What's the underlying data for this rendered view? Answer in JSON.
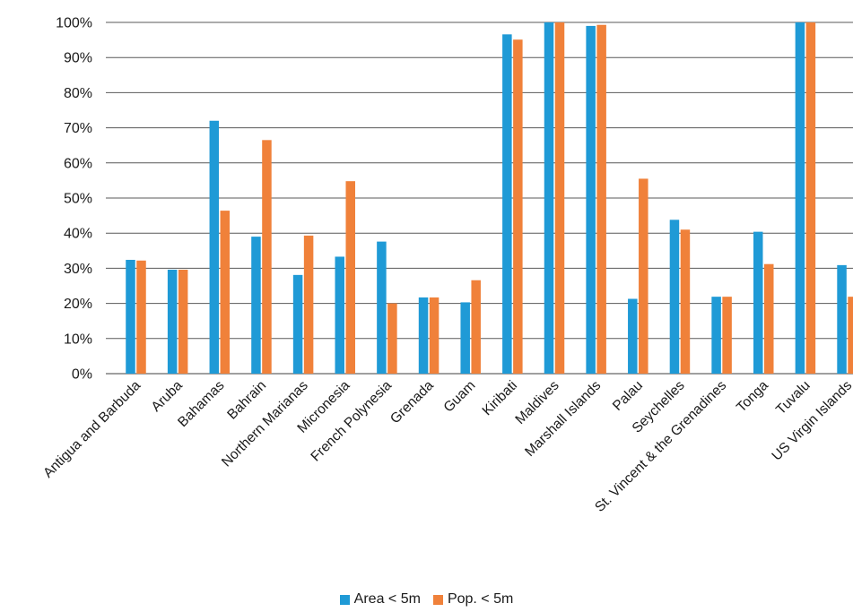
{
  "chart_data": {
    "type": "bar",
    "title": "",
    "xlabel": "",
    "ylabel": "",
    "ylim": [
      0,
      100
    ],
    "yticks": [
      "0%",
      "10%",
      "20%",
      "30%",
      "40%",
      "50%",
      "60%",
      "70%",
      "80%",
      "90%",
      "100%"
    ],
    "grid": true,
    "legend_position": "bottom",
    "categories": [
      "Antigua and Barbuda",
      "Aruba",
      "Bahamas",
      "Bahrain",
      "Northern Marianas",
      "Micronesia",
      "French Polynesia",
      "Grenada",
      "Guam",
      "Kiribati",
      "Maldives",
      "Marshall Islands",
      "Palau",
      "Seychelles",
      "St. Vincent & the Grenadines",
      "Tonga",
      "Tuvalu",
      "US Virgin Islands"
    ],
    "series": [
      {
        "name": "Area < 5m",
        "color": "#1f9ad6",
        "values": [
          32.4,
          29.6,
          72,
          39,
          28.1,
          33.3,
          37.6,
          21.7,
          20.3,
          96.6,
          100,
          99,
          21.3,
          43.8,
          21.9,
          40.4,
          100,
          30.9
        ]
      },
      {
        "name": "Pop. < 5m",
        "color": "#f0813a",
        "values": [
          32.2,
          29.6,
          46.4,
          66.5,
          39.3,
          54.8,
          20,
          21.7,
          26.6,
          95.1,
          100,
          99.3,
          55.5,
          41,
          21.9,
          31.2,
          100,
          21.9
        ]
      }
    ]
  }
}
